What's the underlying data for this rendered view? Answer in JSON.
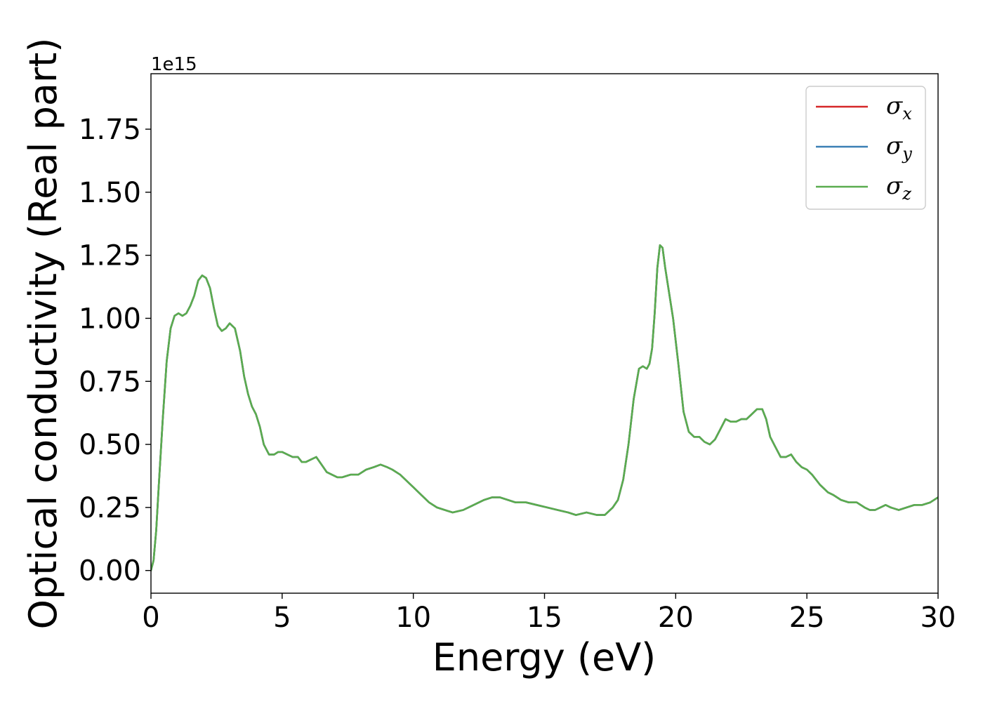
{
  "chart_data": {
    "type": "line",
    "title": "",
    "xlabel": "Energy (eV)",
    "ylabel": "Optical conductivity (Real part)",
    "y_offset_label": "1e15",
    "y_scale_factor": 1000000000000000.0,
    "xlim": [
      0,
      30
    ],
    "ylim": [
      -0.09,
      1.97
    ],
    "x_ticks": [
      0,
      5,
      10,
      15,
      20,
      25,
      30
    ],
    "x_tick_labels": [
      "0",
      "5",
      "10",
      "15",
      "20",
      "25",
      "30"
    ],
    "y_ticks": [
      0.0,
      0.25,
      0.5,
      0.75,
      1.0,
      1.25,
      1.5,
      1.75
    ],
    "y_tick_labels": [
      "0.00",
      "0.25",
      "0.50",
      "0.75",
      "1.00",
      "1.25",
      "1.50",
      "1.75"
    ],
    "grid": false,
    "legend_position": "top-right",
    "x": [
      0,
      0.1,
      0.2,
      0.3,
      0.45,
      0.6,
      0.75,
      0.9,
      1.05,
      1.2,
      1.35,
      1.5,
      1.65,
      1.8,
      1.95,
      2.1,
      2.25,
      2.4,
      2.55,
      2.7,
      2.85,
      3.0,
      3.2,
      3.4,
      3.55,
      3.7,
      3.85,
      4.0,
      4.15,
      4.3,
      4.5,
      4.7,
      4.85,
      5.0,
      5.2,
      5.4,
      5.6,
      5.75,
      5.9,
      6.1,
      6.3,
      6.5,
      6.7,
      6.9,
      7.1,
      7.3,
      7.6,
      7.9,
      8.2,
      8.5,
      8.75,
      9.0,
      9.2,
      9.5,
      9.8,
      10.0,
      10.3,
      10.6,
      10.9,
      11.2,
      11.5,
      11.9,
      12.3,
      12.7,
      13.0,
      13.3,
      13.6,
      13.9,
      14.3,
      14.7,
      15.1,
      15.5,
      15.9,
      16.2,
      16.6,
      17.0,
      17.3,
      17.6,
      17.8,
      18.0,
      18.2,
      18.4,
      18.6,
      18.75,
      18.9,
      19.0,
      19.1,
      19.2,
      19.3,
      19.4,
      19.5,
      19.6,
      19.75,
      19.9,
      20.1,
      20.3,
      20.5,
      20.7,
      20.9,
      21.1,
      21.3,
      21.5,
      21.7,
      21.9,
      22.1,
      22.3,
      22.5,
      22.7,
      22.9,
      23.1,
      23.3,
      23.45,
      23.6,
      23.8,
      24.0,
      24.2,
      24.4,
      24.6,
      24.8,
      25.0,
      25.2,
      25.5,
      25.8,
      26.0,
      26.3,
      26.6,
      26.9,
      27.2,
      27.4,
      27.6,
      27.8,
      28.0,
      28.2,
      28.5,
      28.8,
      29.1,
      29.4,
      29.7,
      30.0
    ],
    "series": [
      {
        "name": "σx",
        "color": "#d62728",
        "values": [
          0.0,
          0.04,
          0.16,
          0.34,
          0.6,
          0.83,
          0.96,
          1.01,
          1.02,
          1.01,
          1.02,
          1.05,
          1.09,
          1.15,
          1.17,
          1.16,
          1.12,
          1.04,
          0.97,
          0.95,
          0.96,
          0.98,
          0.96,
          0.87,
          0.77,
          0.7,
          0.65,
          0.62,
          0.57,
          0.5,
          0.46,
          0.46,
          0.47,
          0.47,
          0.46,
          0.45,
          0.45,
          0.43,
          0.43,
          0.44,
          0.45,
          0.42,
          0.39,
          0.38,
          0.37,
          0.37,
          0.38,
          0.38,
          0.4,
          0.41,
          0.42,
          0.41,
          0.4,
          0.38,
          0.35,
          0.33,
          0.3,
          0.27,
          0.25,
          0.24,
          0.23,
          0.24,
          0.26,
          0.28,
          0.29,
          0.29,
          0.28,
          0.27,
          0.27,
          0.26,
          0.25,
          0.24,
          0.23,
          0.22,
          0.23,
          0.22,
          0.22,
          0.25,
          0.28,
          0.36,
          0.5,
          0.68,
          0.8,
          0.81,
          0.8,
          0.82,
          0.88,
          1.02,
          1.2,
          1.29,
          1.28,
          1.2,
          1.1,
          1.0,
          0.82,
          0.63,
          0.55,
          0.53,
          0.53,
          0.51,
          0.5,
          0.52,
          0.56,
          0.6,
          0.59,
          0.59,
          0.6,
          0.6,
          0.62,
          0.64,
          0.64,
          0.6,
          0.53,
          0.49,
          0.45,
          0.45,
          0.46,
          0.43,
          0.41,
          0.4,
          0.38,
          0.34,
          0.31,
          0.3,
          0.28,
          0.27,
          0.27,
          0.25,
          0.24,
          0.24,
          0.25,
          0.26,
          0.25,
          0.24,
          0.25,
          0.26,
          0.26,
          0.27,
          0.29
        ]
      },
      {
        "name": "σy",
        "color": "#3a7fb5",
        "values": [
          0.0,
          0.04,
          0.16,
          0.34,
          0.6,
          0.83,
          0.96,
          1.01,
          1.02,
          1.01,
          1.02,
          1.05,
          1.09,
          1.15,
          1.17,
          1.16,
          1.12,
          1.04,
          0.97,
          0.95,
          0.96,
          0.98,
          0.96,
          0.87,
          0.77,
          0.7,
          0.65,
          0.62,
          0.57,
          0.5,
          0.46,
          0.46,
          0.47,
          0.47,
          0.46,
          0.45,
          0.45,
          0.43,
          0.43,
          0.44,
          0.45,
          0.42,
          0.39,
          0.38,
          0.37,
          0.37,
          0.38,
          0.38,
          0.4,
          0.41,
          0.42,
          0.41,
          0.4,
          0.38,
          0.35,
          0.33,
          0.3,
          0.27,
          0.25,
          0.24,
          0.23,
          0.24,
          0.26,
          0.28,
          0.29,
          0.29,
          0.28,
          0.27,
          0.27,
          0.26,
          0.25,
          0.24,
          0.23,
          0.22,
          0.23,
          0.22,
          0.22,
          0.25,
          0.28,
          0.36,
          0.5,
          0.68,
          0.8,
          0.81,
          0.8,
          0.82,
          0.88,
          1.02,
          1.2,
          1.29,
          1.28,
          1.2,
          1.1,
          1.0,
          0.82,
          0.63,
          0.55,
          0.53,
          0.53,
          0.51,
          0.5,
          0.52,
          0.56,
          0.6,
          0.59,
          0.59,
          0.6,
          0.6,
          0.62,
          0.64,
          0.64,
          0.6,
          0.53,
          0.49,
          0.45,
          0.45,
          0.46,
          0.43,
          0.41,
          0.4,
          0.38,
          0.34,
          0.31,
          0.3,
          0.28,
          0.27,
          0.27,
          0.25,
          0.24,
          0.24,
          0.25,
          0.26,
          0.25,
          0.24,
          0.25,
          0.26,
          0.26,
          0.27,
          0.29
        ]
      },
      {
        "name": "σz",
        "color": "#5aac4f",
        "values": [
          0.0,
          0.04,
          0.16,
          0.34,
          0.6,
          0.83,
          0.96,
          1.01,
          1.02,
          1.01,
          1.02,
          1.05,
          1.09,
          1.15,
          1.17,
          1.16,
          1.12,
          1.04,
          0.97,
          0.95,
          0.96,
          0.98,
          0.96,
          0.87,
          0.77,
          0.7,
          0.65,
          0.62,
          0.57,
          0.5,
          0.46,
          0.46,
          0.47,
          0.47,
          0.46,
          0.45,
          0.45,
          0.43,
          0.43,
          0.44,
          0.45,
          0.42,
          0.39,
          0.38,
          0.37,
          0.37,
          0.38,
          0.38,
          0.4,
          0.41,
          0.42,
          0.41,
          0.4,
          0.38,
          0.35,
          0.33,
          0.3,
          0.27,
          0.25,
          0.24,
          0.23,
          0.24,
          0.26,
          0.28,
          0.29,
          0.29,
          0.28,
          0.27,
          0.27,
          0.26,
          0.25,
          0.24,
          0.23,
          0.22,
          0.23,
          0.22,
          0.22,
          0.25,
          0.28,
          0.36,
          0.5,
          0.68,
          0.8,
          0.81,
          0.8,
          0.82,
          0.88,
          1.02,
          1.2,
          1.29,
          1.28,
          1.2,
          1.1,
          1.0,
          0.82,
          0.63,
          0.55,
          0.53,
          0.53,
          0.51,
          0.5,
          0.52,
          0.56,
          0.6,
          0.59,
          0.59,
          0.6,
          0.6,
          0.62,
          0.64,
          0.64,
          0.6,
          0.53,
          0.49,
          0.45,
          0.45,
          0.46,
          0.43,
          0.41,
          0.4,
          0.38,
          0.34,
          0.31,
          0.3,
          0.28,
          0.27,
          0.27,
          0.25,
          0.24,
          0.24,
          0.25,
          0.26,
          0.25,
          0.24,
          0.25,
          0.26,
          0.26,
          0.27,
          0.29
        ]
      }
    ]
  }
}
